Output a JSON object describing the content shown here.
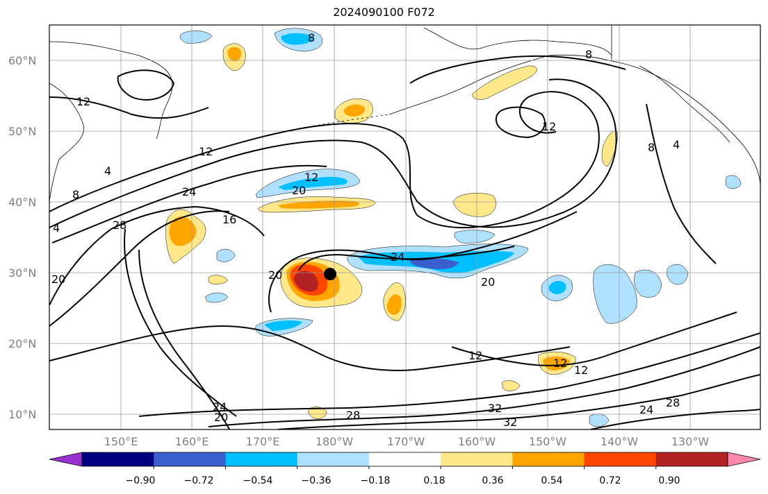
{
  "title": "2024090100 F072",
  "lat_labels": [
    "60°N",
    "50°N",
    "40°N",
    "30°N",
    "20°N",
    "10°N"
  ],
  "lon_labels": [
    "150°E",
    "160°E",
    "170°E",
    "180°W",
    "170°W",
    "160°W",
    "150°W",
    "140°W",
    "130°W"
  ],
  "colorbar": {
    "tick_labels": [
      "−0.90",
      "−0.72",
      "−0.54",
      "−0.36",
      "−0.18",
      "0.18",
      "0.36",
      "0.54",
      "0.72",
      "0.90"
    ],
    "colors": [
      "#9b30d0",
      "#000080",
      "#3a5fcd",
      "#00bfff",
      "#afe0ff",
      "#ffffff",
      "#ffe88a",
      "#ffa500",
      "#ff4500",
      "#b22222",
      "#ff88aa"
    ]
  },
  "contour_labels": [
    "8",
    "12",
    "12",
    "8",
    "8",
    "4",
    "4",
    "8",
    "4",
    "12",
    "24",
    "16",
    "28",
    "20",
    "12",
    "20",
    "24",
    "20",
    "20",
    "24",
    "20",
    "28",
    "32",
    "32",
    "24",
    "28",
    "12",
    "12",
    "12"
  ],
  "markers": [
    {
      "name": "storm-center",
      "lon": -178.5,
      "lat": 30.0
    }
  ]
}
